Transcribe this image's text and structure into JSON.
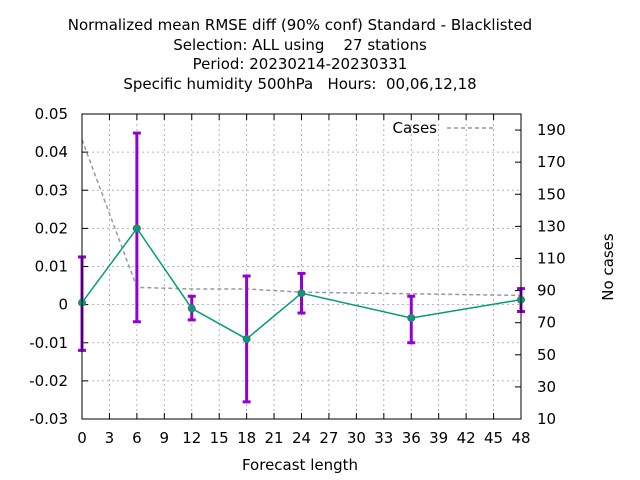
{
  "chart_data": {
    "type": "line",
    "title": [
      "Normalized mean RMSE diff (90% conf) Standard - Blacklisted",
      "Selection: ALL using    27 stations",
      "Period: 20230214-20230331",
      "Specific humidity 500hPa   Hours:  00,06,12,18"
    ],
    "xlabel": "Forecast length",
    "ylabel": "",
    "y2label": "No cases",
    "xlim": [
      0,
      48
    ],
    "ylim": [
      -0.03,
      0.05
    ],
    "y2lim": [
      10,
      200
    ],
    "xticks": [
      "0",
      "3",
      "6",
      "9",
      "12",
      "15",
      "18",
      "21",
      "24",
      "27",
      "30",
      "33",
      "36",
      "39",
      "42",
      "45",
      "48"
    ],
    "yticks": [
      "0.05",
      "0.04",
      "0.03",
      "0.02",
      "0.01",
      "0",
      "-0.01",
      "-0.02",
      "-0.03"
    ],
    "y2ticks": [
      "190",
      "170",
      "150",
      "130",
      "110",
      "90",
      "70",
      "50",
      "30",
      "10"
    ],
    "grid": true,
    "legend": {
      "position": "top-right",
      "label": "Cases"
    },
    "series": [
      {
        "x": [
          0,
          6,
          12,
          18,
          24,
          36,
          48
        ],
        "y": [
          0.0005,
          0.02,
          -0.001,
          -0.009,
          0.003,
          -0.0035,
          0.0013
        ],
        "err_low": [
          -0.012,
          -0.0045,
          -0.004,
          -0.0255,
          -0.0022,
          -0.01,
          -0.0018
        ],
        "err_high": [
          0.0125,
          0.045,
          0.0022,
          0.0075,
          0.0082,
          0.0022,
          0.0042
        ],
        "color": "#009e73",
        "errcolor": "#9400d3"
      },
      {
        "name": "Cases",
        "axis": "y2",
        "x": [
          0,
          6,
          12,
          18,
          24,
          36,
          48
        ],
        "y": [
          184,
          92,
          91,
          91,
          89,
          88,
          87
        ],
        "color": "#999999",
        "dash": "dashed"
      }
    ]
  }
}
